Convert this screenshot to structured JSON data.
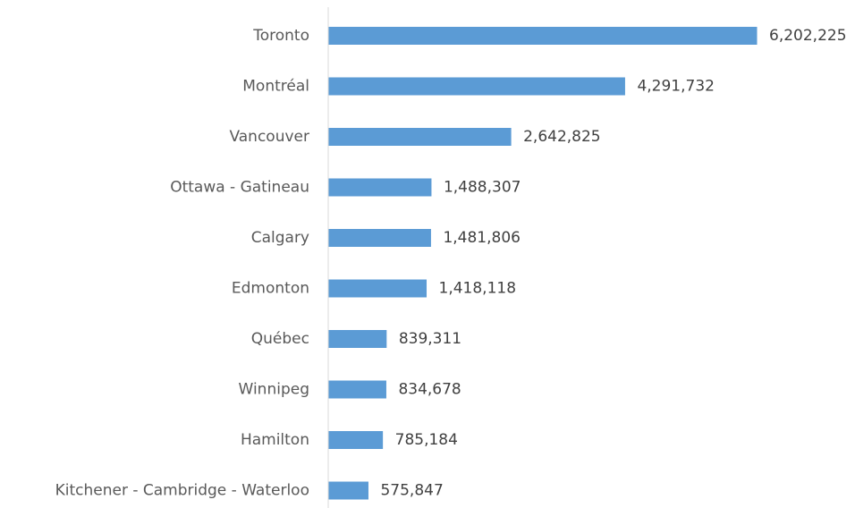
{
  "chart_data": {
    "type": "bar",
    "orientation": "horizontal",
    "categories": [
      "Toronto",
      "Montréal",
      "Vancouver",
      "Ottawa - Gatineau",
      "Calgary",
      "Edmonton",
      "Québec",
      "Winnipeg",
      "Hamilton",
      "Kitchener - Cambridge - Waterloo"
    ],
    "values": [
      6202225,
      4291732,
      2642825,
      1488307,
      1481806,
      1418118,
      839311,
      834678,
      785184,
      575847
    ],
    "data_labels": [
      "6,202,225",
      "4,291,732",
      "2,642,825",
      "1,488,307",
      "1,481,806",
      "1,418,118",
      "839,311",
      "834,678",
      "785,184",
      "575,847"
    ],
    "title": "",
    "xlabel": "",
    "ylabel": "",
    "xlim": [
      0,
      6202225
    ],
    "grid": false,
    "legend": "none",
    "bar_color": "#5b9bd5",
    "axis_color": "#d9d9d9",
    "label_color": "#595959"
  }
}
